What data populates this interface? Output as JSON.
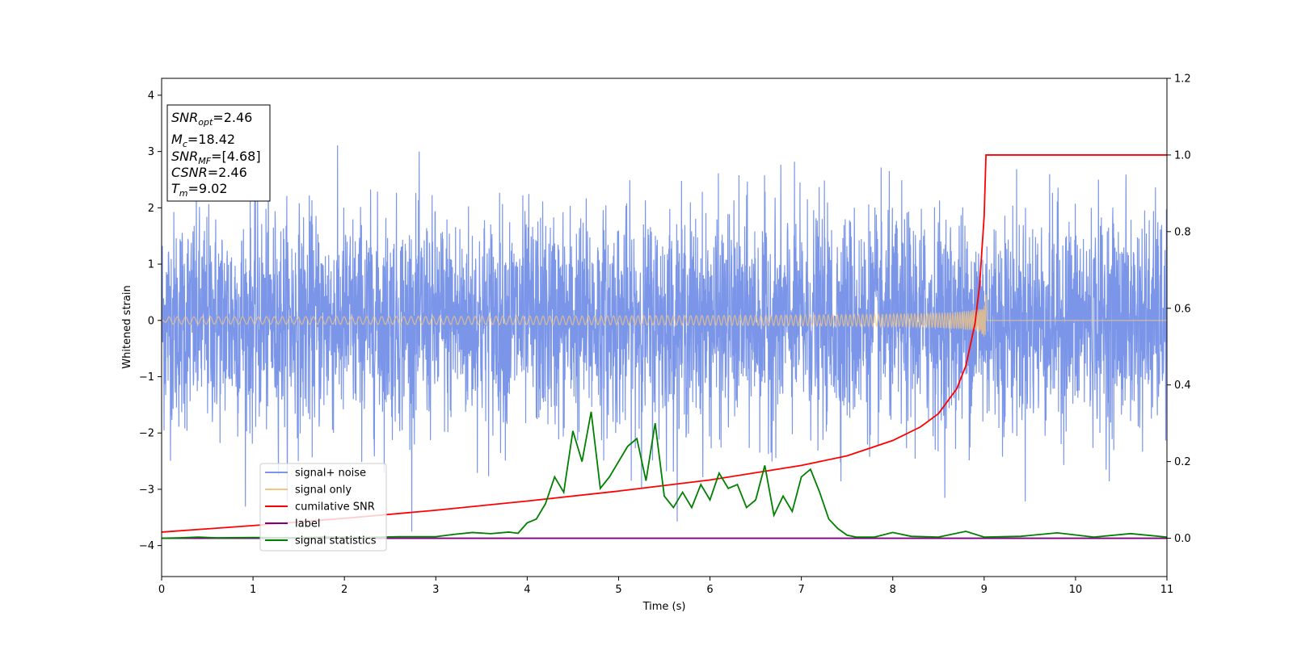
{
  "chart_data": {
    "type": "line",
    "xlabel": "Time (s)",
    "ylabel": "Whitened strain",
    "xlim": [
      0,
      11
    ],
    "ylim": [
      -4.55,
      4.3
    ],
    "y2lim": [
      -0.1,
      1.2
    ],
    "x_ticks": [
      0,
      1,
      2,
      3,
      4,
      5,
      6,
      7,
      8,
      9,
      10,
      11
    ],
    "y_ticks": [
      -4,
      -3,
      -2,
      -1,
      0,
      1,
      2,
      3,
      4
    ],
    "y2_ticks": [
      0.0,
      0.2,
      0.4,
      0.6,
      0.8,
      1.0,
      1.2
    ],
    "x_tick_labels": [
      "0",
      "1",
      "2",
      "3",
      "4",
      "5",
      "6",
      "7",
      "8",
      "9",
      "10",
      "11"
    ],
    "y_tick_labels": [
      "−4",
      "−3",
      "−2",
      "−1",
      "0",
      "1",
      "2",
      "3",
      "4"
    ],
    "y2_tick_labels": [
      "0.0",
      "0.2",
      "0.4",
      "0.6",
      "0.8",
      "1.0",
      "1.2"
    ],
    "grid": false,
    "legend_position": "lower-left",
    "annotation_box": {
      "position": "top-left",
      "lines": [
        {
          "base": "SNR",
          "sub": "opt",
          "value": "=2.46"
        },
        {
          "base": "M",
          "sub": "c",
          "value": "=18.42"
        },
        {
          "base": "SNR",
          "sub": "MF",
          "value": "=[4.68]"
        },
        {
          "base": "CSNR",
          "sub": "",
          "value": "=2.46"
        },
        {
          "base": "T",
          "sub": "m",
          "value": "=9.02"
        }
      ]
    },
    "series": [
      {
        "name": "signal+ noise",
        "color": "#7b96e8",
        "axis": "left",
        "kind": "noise",
        "amplitude_range": [
          -3.75,
          3.9
        ],
        "x_range": [
          0,
          11
        ]
      },
      {
        "name": "signal only",
        "color": "#f5c77e",
        "axis": "left",
        "kind": "chirp",
        "merger_time": 9.02,
        "peak_amplitude": 0.45,
        "x_range": [
          0,
          11
        ]
      },
      {
        "name": "cumilative SNR",
        "color": "#ff0000",
        "axis": "right",
        "x": [
          0,
          1,
          2,
          3,
          4,
          5,
          6,
          7,
          7.5,
          8,
          8.3,
          8.5,
          8.7,
          8.8,
          8.9,
          8.95,
          9.0,
          9.02,
          10,
          11
        ],
        "y": [
          0.016,
          0.033,
          0.052,
          0.073,
          0.097,
          0.123,
          0.152,
          0.19,
          0.215,
          0.255,
          0.29,
          0.325,
          0.39,
          0.45,
          0.56,
          0.66,
          0.84,
          1.0,
          1.0,
          1.0
        ]
      },
      {
        "name": "label",
        "color": "#800080",
        "axis": "right",
        "x": [
          0,
          11
        ],
        "y": [
          0,
          0
        ]
      },
      {
        "name": "signal statistics",
        "color": "#008000",
        "axis": "right",
        "x": [
          0,
          0.2,
          0.4,
          0.6,
          1.0,
          1.4,
          1.8,
          2.2,
          2.6,
          3.0,
          3.2,
          3.4,
          3.6,
          3.8,
          3.9,
          4.0,
          4.1,
          4.2,
          4.3,
          4.4,
          4.5,
          4.6,
          4.7,
          4.8,
          4.9,
          5.0,
          5.1,
          5.2,
          5.3,
          5.4,
          5.5,
          5.6,
          5.7,
          5.8,
          5.9,
          6.0,
          6.1,
          6.2,
          6.3,
          6.4,
          6.5,
          6.6,
          6.7,
          6.8,
          6.9,
          7.0,
          7.1,
          7.2,
          7.3,
          7.4,
          7.5,
          7.6,
          7.8,
          8.0,
          8.2,
          8.5,
          8.8,
          9.0,
          9.4,
          9.8,
          10.2,
          10.6,
          11.0
        ],
        "y": [
          0.0,
          0.001,
          0.003,
          0.001,
          0.002,
          0.001,
          0.003,
          0.002,
          0.004,
          0.004,
          0.01,
          0.015,
          0.012,
          0.016,
          0.013,
          0.04,
          0.05,
          0.09,
          0.16,
          0.12,
          0.28,
          0.2,
          0.33,
          0.13,
          0.16,
          0.2,
          0.24,
          0.26,
          0.15,
          0.3,
          0.11,
          0.08,
          0.12,
          0.08,
          0.14,
          0.1,
          0.17,
          0.13,
          0.14,
          0.08,
          0.1,
          0.19,
          0.06,
          0.11,
          0.07,
          0.16,
          0.18,
          0.12,
          0.05,
          0.025,
          0.008,
          0.003,
          0.003,
          0.015,
          0.005,
          0.003,
          0.018,
          0.003,
          0.005,
          0.014,
          0.003,
          0.012,
          0.003
        ]
      }
    ]
  }
}
